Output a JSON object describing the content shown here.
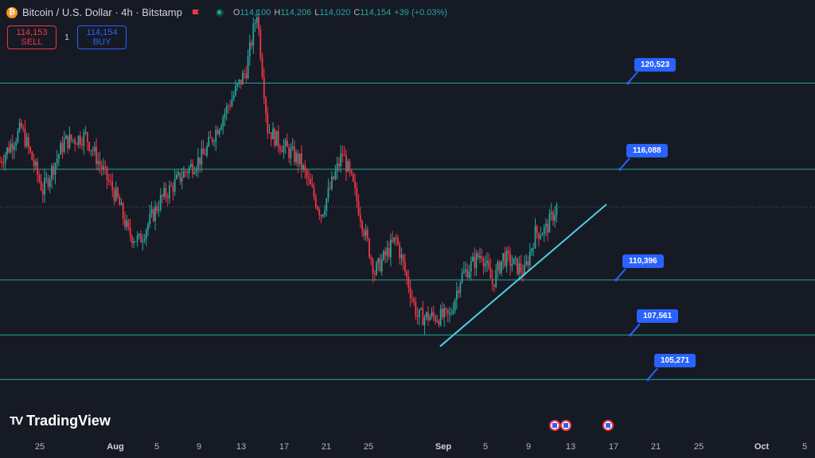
{
  "header": {
    "title": "Bitcoin / U.S. Dollar · 4h · Bitstamp",
    "icon": "bitcoin-icon",
    "ohlc": {
      "o_label": "O",
      "o": "114,100",
      "h_label": "H",
      "h": "114,206",
      "l_label": "L",
      "l": "114,020",
      "c_label": "C",
      "c": "114,154",
      "change": "+39 (+0.03%)"
    }
  },
  "trade": {
    "sell_price": "114,153",
    "sell_label": "SELL",
    "spread": "1",
    "buy_price": "114,154",
    "buy_label": "BUY"
  },
  "brand": {
    "name": "TradingView",
    "mark": "TV"
  },
  "colors": {
    "background": "#161a25",
    "up": "#26a69a",
    "down": "#f23645",
    "level_line": "#22ab94",
    "trend_line": "#4dd0e1",
    "label_bg": "#2962ff"
  },
  "chart_data": {
    "type": "candlestick",
    "symbol": "BTCUSD",
    "timeframe": "4h",
    "x_axis_ticks": [
      "25",
      "Aug",
      "5",
      "9",
      "13",
      "17",
      "21",
      "25",
      "Sep",
      "5",
      "9",
      "13",
      "17",
      "21",
      "25",
      "Oct",
      "5"
    ],
    "ylim": [
      102500,
      124800
    ],
    "horizontal_levels": [
      120523,
      116088,
      110396,
      107561,
      105271
    ],
    "level_labels": [
      "120,523",
      "116,088",
      "110,396",
      "107,561",
      "105,271"
    ],
    "last_price": 114154,
    "trendline": {
      "from": [
        "Sep 1",
        107300
      ],
      "to": [
        "Sep 11",
        113000
      ]
    },
    "price_path": [
      [
        "Jul 21",
        116500
      ],
      [
        "Jul 23",
        118200
      ],
      [
        "Jul 25",
        115000
      ],
      [
        "Jul 27",
        117500
      ],
      [
        "Jul 29",
        117800
      ],
      [
        "Aug 1",
        114500
      ],
      [
        "Aug 2",
        112800
      ],
      [
        "Aug 3",
        112400
      ],
      [
        "Aug 5",
        114500
      ],
      [
        "Aug 7",
        115800
      ],
      [
        "Aug 9",
        116800
      ],
      [
        "Aug 11",
        119000
      ],
      [
        "Aug 13",
        121200
      ],
      [
        "Aug 14",
        124200
      ],
      [
        "Aug 15",
        118200
      ],
      [
        "Aug 16",
        117500
      ],
      [
        "Aug 18",
        116500
      ],
      [
        "Aug 20",
        113800
      ],
      [
        "Aug 22",
        116900
      ],
      [
        "Aug 23",
        115200
      ],
      [
        "Aug 25",
        110800
      ],
      [
        "Aug 27",
        112500
      ],
      [
        "Aug 29",
        108500
      ],
      [
        "Aug 31",
        108500
      ],
      [
        "Sep 1",
        108500
      ],
      [
        "Sep 2",
        110500
      ],
      [
        "Sep 4",
        111800
      ],
      [
        "Sep 5",
        110200
      ],
      [
        "Sep 6",
        111600
      ],
      [
        "Sep 8",
        110800
      ],
      [
        "Sep 9",
        112800
      ],
      [
        "Sep 10",
        113000
      ],
      [
        "Sep 11",
        114150
      ]
    ]
  },
  "events": [
    "us-flag-event-icon",
    "us-flag-event-icon",
    "us-flag-event-icon"
  ]
}
